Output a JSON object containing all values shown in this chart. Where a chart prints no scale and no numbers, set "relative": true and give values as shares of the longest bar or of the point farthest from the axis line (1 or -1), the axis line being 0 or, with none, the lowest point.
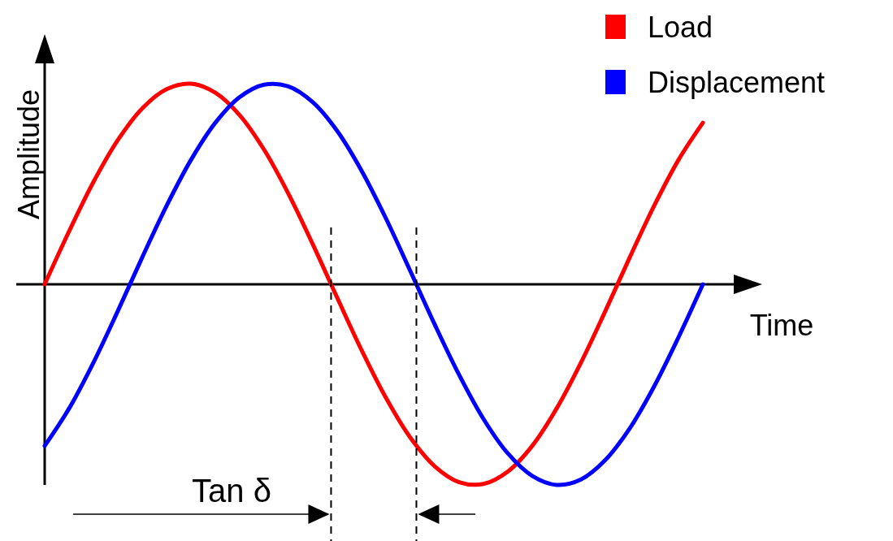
{
  "chart_data": {
    "type": "line",
    "xlabel": "Time",
    "ylabel": "Amplitude",
    "relative": true,
    "legend": "top right",
    "categories": [
      null,
      null,
      null,
      null,
      null,
      null,
      null,
      null,
      null,
      null,
      null,
      null,
      null,
      null,
      null,
      null,
      null,
      null,
      null,
      null,
      null,
      null,
      null,
      null,
      null,
      null,
      null,
      null
    ],
    "series": [
      {
        "name": "Load",
        "color": "#ff0000",
        "values": [
          0,
          0.264,
          0.51,
          0.719,
          0.877,
          0.973,
          1,
          0.955,
          0.843,
          0.671,
          0.451,
          0.199,
          -0.067,
          -0.328,
          -0.566,
          -0.764,
          -0.907,
          -0.986,
          -0.995,
          -0.933,
          -0.805,
          -0.619,
          -0.39,
          -0.133,
          0.134,
          0.391,
          0.62,
          0.805
        ]
      },
      {
        "name": "Displacement",
        "color": "#0000ff",
        "values": [
          -0.805,
          -0.619,
          -0.39,
          -0.133,
          0.134,
          0.391,
          0.62,
          0.805,
          0.933,
          0.995,
          0.986,
          0.907,
          0.764,
          0.566,
          0.328,
          0.066,
          -0.2,
          -0.451,
          -0.671,
          -0.843,
          -0.955,
          -1,
          -0.973,
          -0.876,
          -0.718,
          -0.509,
          -0.264,
          0
        ]
      }
    ],
    "annotations": [
      "Tan δ"
    ]
  }
}
